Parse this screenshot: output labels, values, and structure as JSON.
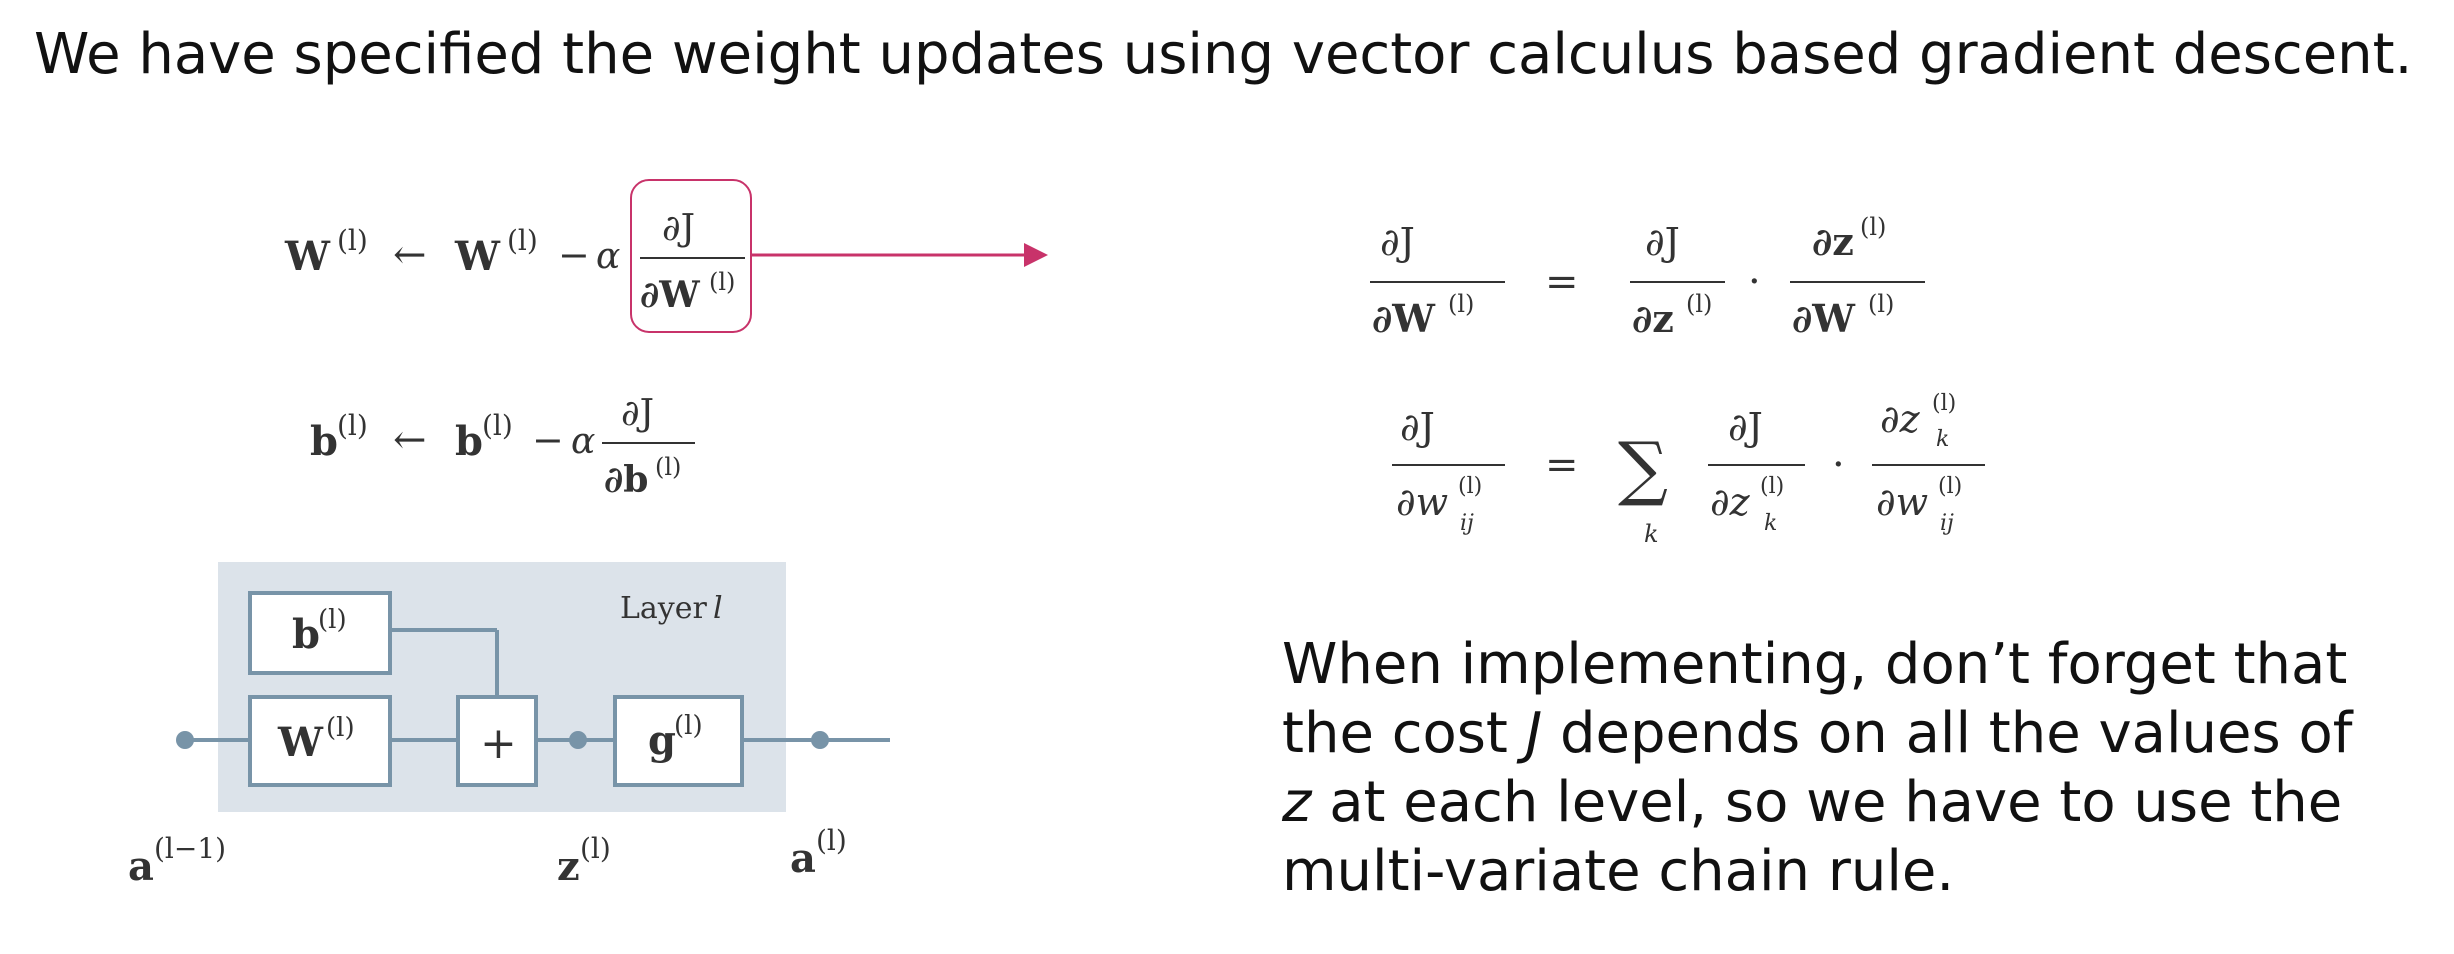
{
  "heading": "We have specified the weight updates using vector calculus based gradient descent.",
  "update_rules": {
    "weight_rule": {
      "lhs": "W",
      "sup": "(l)",
      "arrow": "←",
      "minus": "−",
      "alpha": "α",
      "num": "∂J",
      "den": "∂W"
    },
    "bias_rule": {
      "lhs": "b",
      "sup": "(l)",
      "arrow": "←",
      "minus": "−",
      "alpha": "α",
      "num": "∂J",
      "den": "∂b"
    }
  },
  "chain_rule": {
    "vector_form": {
      "lhs_num": "∂J",
      "lhs_den": "∂W",
      "eq": "=",
      "t1_num": "∂J",
      "t1_den": "∂z",
      "dot": "·",
      "t2_num": "∂z",
      "t2_den": "∂W",
      "sup": "(l)"
    },
    "scalar_form": {
      "lhs_num": "∂J",
      "lhs_den": "∂w",
      "eq": "=",
      "sum": "∑",
      "sum_index": "k",
      "t1_num": "∂J",
      "t1_den": "∂z",
      "dot": "·",
      "t2_num": "∂z",
      "t2_den": "∂w",
      "sup": "(l)",
      "sub_ij": "ij",
      "sub_k": "k"
    }
  },
  "diagram": {
    "layer_label": "Layer",
    "layer_var": "l",
    "bias_box": {
      "sym": "b",
      "sup": "(l)"
    },
    "weight_box": {
      "sym": "W",
      "sup": "(l)"
    },
    "sum_box": "+",
    "activation_box": {
      "sym": "g",
      "sup": "(l)"
    },
    "input_label": {
      "sym": "a",
      "sup": "(l−1)"
    },
    "z_label": {
      "sym": "z",
      "sup": "(l)"
    },
    "output_label": {
      "sym": "a",
      "sup": "(l)"
    },
    "colors": {
      "panel": "#dce3ea",
      "box_stroke": "#7894a8",
      "line": "#7894a8",
      "arrow": "#c8336a"
    }
  },
  "paragraph": {
    "line1": "When implementing, don’t forget that",
    "line2a": "the cost ",
    "line2_var": "J",
    "line2b": " depends on all the values of",
    "line3_var": "z",
    "line3b": " at each level, so we have to use the",
    "line4": "multi-variate chain rule."
  }
}
